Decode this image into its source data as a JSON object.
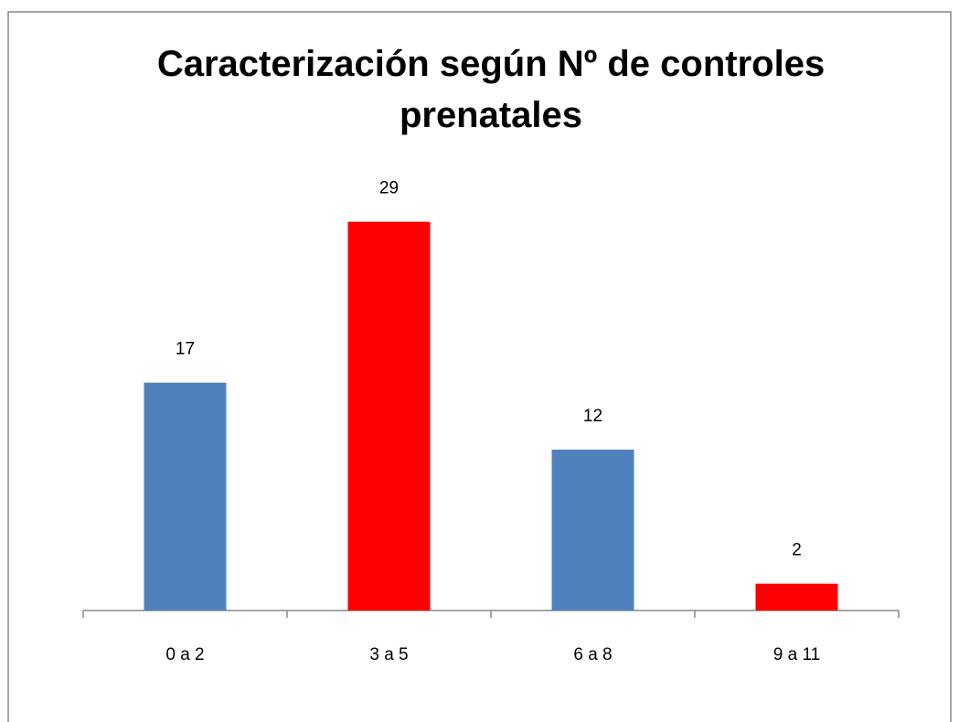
{
  "chart_data": {
    "type": "bar",
    "title": "Caracterización según Nº de controles prenatales",
    "categories": [
      "0 a 2",
      "3 a 5",
      "6 a 8",
      "9 a 11"
    ],
    "values": [
      17,
      29,
      12,
      2
    ],
    "colors": [
      "#4f81bd",
      "#ff0000",
      "#4f81bd",
      "#ff0000"
    ],
    "ylim": [
      0,
      30
    ]
  }
}
